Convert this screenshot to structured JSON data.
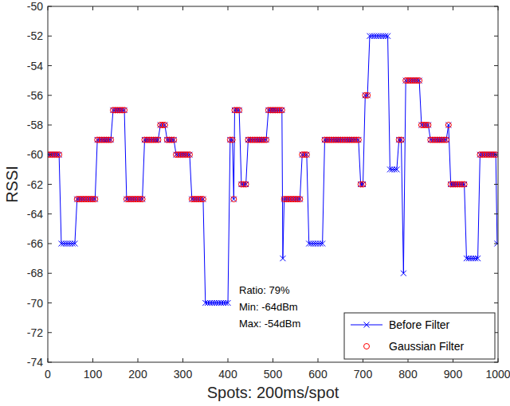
{
  "chart_data": {
    "type": "line",
    "x_label": "Spots: 200ms/spot",
    "y_label": "RSSI",
    "annotations": [
      "Ratio: 79%",
      "Min: -64dBm",
      "Max: -54dBm"
    ],
    "xlim": [
      0,
      1000
    ],
    "xticks": [
      0,
      100,
      200,
      300,
      400,
      500,
      600,
      700,
      800,
      900,
      1000
    ],
    "ylim": [
      -74,
      -50
    ],
    "yticks": [
      -74,
      -72,
      -70,
      -68,
      -66,
      -64,
      -62,
      -60,
      -58,
      -56,
      -54,
      -52,
      -50
    ],
    "grid": false,
    "legend": "southeast",
    "x": [
      0,
      5,
      10,
      15,
      20,
      25,
      30,
      35,
      40,
      45,
      50,
      55,
      60,
      65,
      70,
      75,
      80,
      85,
      90,
      95,
      100,
      105,
      110,
      115,
      120,
      125,
      130,
      135,
      140,
      145,
      150,
      155,
      160,
      165,
      170,
      175,
      180,
      185,
      190,
      195,
      200,
      205,
      210,
      215,
      220,
      225,
      230,
      235,
      240,
      245,
      250,
      255,
      260,
      265,
      270,
      275,
      280,
      285,
      290,
      295,
      300,
      305,
      310,
      315,
      320,
      325,
      330,
      335,
      340,
      345,
      350,
      355,
      360,
      365,
      370,
      375,
      380,
      385,
      390,
      395,
      400,
      405,
      410,
      413,
      415,
      420,
      425,
      430,
      435,
      440,
      445,
      450,
      455,
      460,
      465,
      470,
      475,
      480,
      485,
      490,
      495,
      500,
      505,
      510,
      515,
      520,
      522,
      525,
      530,
      535,
      540,
      545,
      550,
      555,
      560,
      565,
      570,
      575,
      580,
      585,
      590,
      595,
      600,
      605,
      610,
      615,
      620,
      625,
      630,
      635,
      640,
      645,
      650,
      655,
      660,
      665,
      670,
      675,
      680,
      685,
      690,
      695,
      700,
      705,
      710,
      715,
      720,
      725,
      730,
      735,
      740,
      745,
      750,
      755,
      760,
      765,
      770,
      775,
      780,
      785,
      790,
      795,
      800,
      805,
      810,
      815,
      820,
      825,
      830,
      835,
      840,
      845,
      850,
      855,
      860,
      865,
      870,
      875,
      880,
      885,
      890,
      895,
      900,
      905,
      910,
      915,
      920,
      925,
      930,
      935,
      940,
      945,
      950,
      955,
      960,
      965,
      970,
      975,
      980,
      985,
      990,
      995,
      998
    ],
    "series": [
      {
        "name": "Before Filter",
        "color": "#0000ff",
        "marker": "x",
        "line_style": "solid",
        "values": [
          -60,
          -60,
          -60,
          -60,
          -60,
          -60,
          -66,
          -66,
          -66,
          -66,
          -66,
          -66,
          -66,
          -63,
          -63,
          -63,
          -63,
          -63,
          -63,
          -63,
          -63,
          -63,
          -59,
          -59,
          -59,
          -59,
          -59,
          -59,
          -59,
          -57,
          -57,
          -57,
          -57,
          -57,
          -57,
          -63,
          -63,
          -63,
          -63,
          -63,
          -63,
          -63,
          -63,
          -59,
          -59,
          -59,
          -59,
          -59,
          -59,
          -59,
          -58,
          -58,
          -58,
          -59,
          -59,
          -59,
          -59,
          -60,
          -60,
          -60,
          -60,
          -60,
          -60,
          -60,
          -63,
          -63,
          -63,
          -63,
          -63,
          -63,
          -70,
          -70,
          -70,
          -70,
          -70,
          -70,
          -70,
          -70,
          -70,
          -70,
          -70,
          -59,
          -59,
          -63,
          -57,
          -57,
          -57,
          -62,
          -62,
          -62,
          -59,
          -59,
          -59,
          -59,
          -59,
          -59,
          -59,
          -59,
          -59,
          -57,
          -57,
          -57,
          -57,
          -57,
          -57,
          -57,
          -67,
          -63,
          -63,
          -63,
          -63,
          -63,
          -63,
          -63,
          -63,
          -60,
          -60,
          -60,
          -66,
          -66,
          -66,
          -66,
          -66,
          -66,
          -66,
          -59,
          -59,
          -59,
          -59,
          -59,
          -59,
          -59,
          -59,
          -59,
          -59,
          -59,
          -59,
          -59,
          -59,
          -59,
          -59,
          -62,
          -62,
          -56,
          -56,
          -52,
          -52,
          -52,
          -52,
          -52,
          -52,
          -52,
          -52,
          -52,
          -61,
          -61,
          -61,
          -61,
          -59,
          -59,
          -68,
          -55,
          -55,
          -55,
          -55,
          -55,
          -55,
          -55,
          -58,
          -58,
          -58,
          -58,
          -59,
          -59,
          -59,
          -59,
          -59,
          -59,
          -59,
          -59,
          -58,
          -62,
          -62,
          -62,
          -62,
          -62,
          -62,
          -62,
          -67,
          -67,
          -67,
          -67,
          -67,
          -67,
          -60,
          -60,
          -60,
          -60,
          -60,
          -60,
          -60,
          -60,
          -66
        ]
      },
      {
        "name": "Gaussian Filter",
        "color": "#ff0000",
        "marker": "circle",
        "line_style": "none",
        "values": [
          -60,
          -60,
          -60,
          -60,
          -60,
          -60,
          null,
          null,
          null,
          null,
          null,
          null,
          null,
          -63,
          -63,
          -63,
          -63,
          -63,
          -63,
          -63,
          -63,
          -63,
          -59,
          -59,
          -59,
          -59,
          -59,
          -59,
          -59,
          -57,
          -57,
          -57,
          -57,
          -57,
          -57,
          -63,
          -63,
          -63,
          -63,
          -63,
          -63,
          -63,
          -63,
          -59,
          -59,
          -59,
          -59,
          -59,
          -59,
          -59,
          -58,
          -58,
          -58,
          -59,
          -59,
          -59,
          -59,
          -60,
          -60,
          -60,
          -60,
          -60,
          -60,
          -60,
          -63,
          -63,
          -63,
          -63,
          -63,
          -63,
          null,
          null,
          null,
          null,
          null,
          null,
          null,
          null,
          null,
          null,
          null,
          -59,
          -59,
          -63,
          -57,
          -57,
          -57,
          -62,
          -62,
          -62,
          -59,
          -59,
          -59,
          -59,
          -59,
          -59,
          -59,
          -59,
          -59,
          -57,
          -57,
          -57,
          -57,
          -57,
          -57,
          -57,
          null,
          -63,
          -63,
          -63,
          -63,
          -63,
          -63,
          -63,
          -63,
          -60,
          -60,
          -60,
          null,
          null,
          null,
          null,
          null,
          null,
          null,
          -59,
          -59,
          -59,
          -59,
          -59,
          -59,
          -59,
          -59,
          -59,
          -59,
          -59,
          -59,
          -59,
          -59,
          -59,
          -59,
          -62,
          -62,
          -56,
          -56,
          null,
          null,
          null,
          null,
          null,
          null,
          null,
          null,
          null,
          null,
          null,
          null,
          null,
          -59,
          -59,
          null,
          -55,
          -55,
          -55,
          -55,
          -55,
          -55,
          -55,
          -58,
          -58,
          -58,
          -58,
          -59,
          -59,
          -59,
          -59,
          -59,
          -59,
          -59,
          -59,
          -58,
          -62,
          -62,
          -62,
          -62,
          -62,
          -62,
          -62,
          null,
          null,
          null,
          null,
          null,
          null,
          -60,
          -60,
          -60,
          -60,
          -60,
          -60,
          -60,
          -60,
          null
        ]
      }
    ]
  }
}
